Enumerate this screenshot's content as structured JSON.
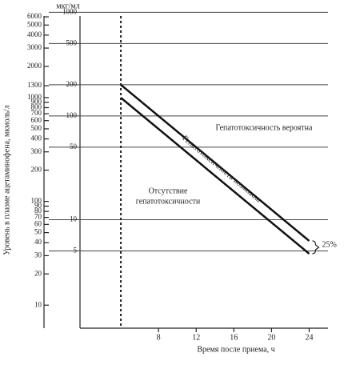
{
  "chart_data": {
    "type": "line",
    "y_label": "Уровень в плазме ацетаминофена, мкмоль/л",
    "y2_label": "мкг/мл",
    "x_label": "Время после приема, ч",
    "log_scale": true,
    "x": [
      4,
      24
    ],
    "series": [
      {
        "color": "#111",
        "axis": "y2",
        "values": [
          200,
          6.25
        ]
      },
      {
        "color": "#111",
        "axis": "y2",
        "values": [
          150,
          4.7
        ]
      }
    ],
    "xlim": [
      0,
      26
    ],
    "xticks": [
      8,
      12,
      16,
      20,
      24
    ],
    "ylim": [
      6,
      7300
    ],
    "yticks": [
      6000,
      5000,
      4000,
      3000,
      2000,
      1300,
      1000,
      900,
      800,
      700,
      600,
      500,
      400,
      300,
      200,
      100,
      90,
      80,
      70,
      60,
      50,
      40,
      30,
      20,
      10
    ],
    "y2lim": [
      0.9,
      1100
    ],
    "y2ticks": [
      1000,
      500,
      200,
      100,
      50,
      10,
      5
    ],
    "annotations": [
      "Гепатотоксичность вероятна",
      "Гепатотоксичность возможна",
      "Отсутствие",
      "гепатотоксичности",
      "25%"
    ]
  }
}
